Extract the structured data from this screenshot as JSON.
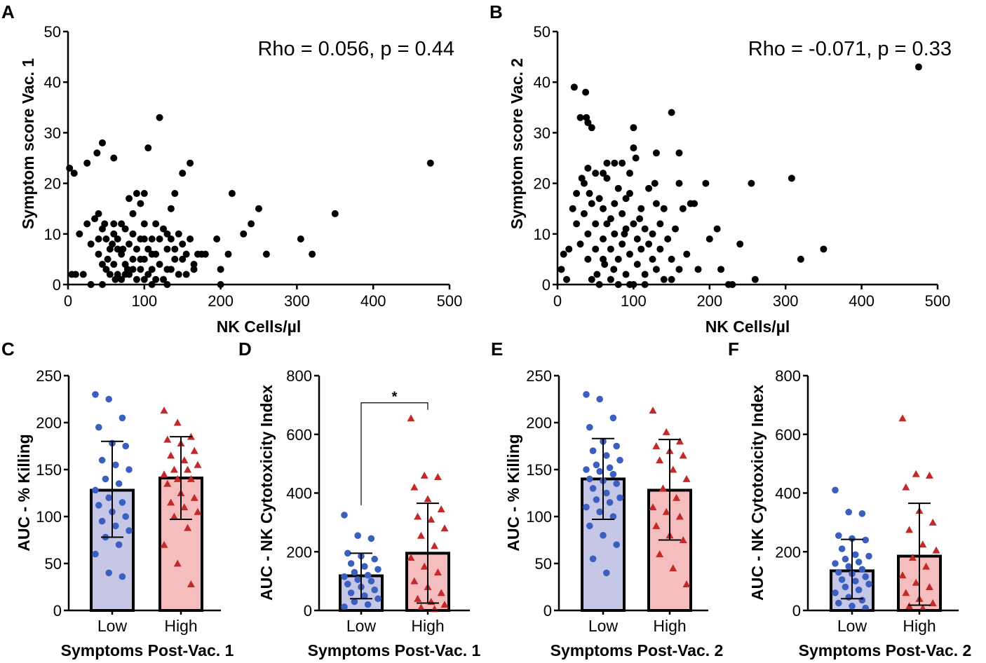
{
  "colors": {
    "blue_fill": "#c6c7e6",
    "blue_marker": "#3a5fbf",
    "red_fill": "#f5bdbd",
    "red_marker": "#c22a2a",
    "axis": "#000000"
  },
  "chart_data": [
    {
      "id": "scatterA",
      "panel": "A",
      "type": "scatter",
      "xlabel": "NK Cells/µl",
      "ylabel": "Symptom score Vac. 1",
      "annotation": "Rho = 0.056, p = 0.44",
      "xlim": [
        0,
        500
      ],
      "ylim": [
        0,
        50
      ],
      "xticks": [
        "0",
        "100",
        "200",
        "300",
        "400",
        "500"
      ],
      "yticks": [
        "0",
        "10",
        "20",
        "30",
        "40",
        "50"
      ],
      "points": [
        [
          2,
          23
        ],
        [
          8,
          22
        ],
        [
          25,
          24
        ],
        [
          38,
          26
        ],
        [
          45,
          28
        ],
        [
          60,
          25
        ],
        [
          105,
          27
        ],
        [
          120,
          33
        ],
        [
          140,
          18
        ],
        [
          150,
          22
        ],
        [
          160,
          24
        ],
        [
          215,
          18
        ],
        [
          250,
          15
        ],
        [
          475,
          24
        ],
        [
          5,
          2
        ],
        [
          10,
          2
        ],
        [
          20,
          2
        ],
        [
          15,
          10
        ],
        [
          25,
          12
        ],
        [
          30,
          8
        ],
        [
          35,
          13
        ],
        [
          40,
          14
        ],
        [
          40,
          6
        ],
        [
          45,
          11
        ],
        [
          50,
          9
        ],
        [
          50,
          3
        ],
        [
          55,
          7
        ],
        [
          60,
          12
        ],
        [
          60,
          4
        ],
        [
          65,
          9
        ],
        [
          65,
          2
        ],
        [
          70,
          6
        ],
        [
          70,
          1
        ],
        [
          75,
          11
        ],
        [
          75,
          4
        ],
        [
          80,
          17
        ],
        [
          80,
          8
        ],
        [
          80,
          2
        ],
        [
          85,
          14
        ],
        [
          85,
          5
        ],
        [
          90,
          18
        ],
        [
          90,
          7
        ],
        [
          95,
          16
        ],
        [
          95,
          3
        ],
        [
          100,
          9
        ],
        [
          100,
          18
        ],
        [
          100,
          5
        ],
        [
          100,
          1
        ],
        [
          105,
          7
        ],
        [
          110,
          9
        ],
        [
          110,
          3
        ],
        [
          115,
          12
        ],
        [
          115,
          6
        ],
        [
          120,
          9
        ],
        [
          120,
          4
        ],
        [
          125,
          11
        ],
        [
          125,
          1
        ],
        [
          130,
          7
        ],
        [
          130,
          3
        ],
        [
          135,
          15
        ],
        [
          135,
          9
        ],
        [
          140,
          5
        ],
        [
          145,
          10
        ],
        [
          145,
          2
        ],
        [
          150,
          8
        ],
        [
          155,
          6
        ],
        [
          160,
          9
        ],
        [
          165,
          4
        ],
        [
          170,
          6
        ],
        [
          175,
          6
        ],
        [
          180,
          6
        ],
        [
          195,
          9
        ],
        [
          200,
          3
        ],
        [
          210,
          6
        ],
        [
          230,
          10
        ],
        [
          240,
          12
        ],
        [
          320,
          6
        ],
        [
          305,
          9
        ],
        [
          350,
          14
        ],
        [
          260,
          6
        ],
        [
          40,
          9
        ],
        [
          45,
          4
        ],
        [
          55,
          2
        ],
        [
          60,
          10
        ],
        [
          65,
          7
        ],
        [
          70,
          12
        ],
        [
          75,
          2
        ],
        [
          85,
          10
        ],
        [
          90,
          1
        ],
        [
          95,
          9
        ],
        [
          105,
          2
        ],
        [
          110,
          6
        ],
        [
          115,
          1
        ],
        [
          130,
          10
        ],
        [
          135,
          3
        ],
        [
          150,
          5
        ],
        [
          155,
          2
        ],
        [
          165,
          3
        ],
        [
          200,
          0
        ],
        [
          30,
          0
        ],
        [
          45,
          0
        ],
        [
          110,
          0
        ],
        [
          130,
          0
        ],
        [
          140,
          7
        ],
        [
          100,
          12
        ],
        [
          95,
          5
        ],
        [
          85,
          3
        ],
        [
          72,
          7
        ],
        [
          62,
          1
        ],
        [
          52,
          5
        ],
        [
          48,
          12
        ],
        [
          58,
          8
        ],
        [
          78,
          3
        ]
      ]
    },
    {
      "id": "scatterB",
      "panel": "B",
      "type": "scatter",
      "xlabel": "NK Cells/µl",
      "ylabel": "Symptom score Vac. 2",
      "annotation": "Rho = -0.071, p = 0.33",
      "xlim": [
        0,
        500
      ],
      "ylim": [
        0,
        50
      ],
      "xticks": [
        "0",
        "100",
        "200",
        "300",
        "400",
        "500"
      ],
      "yticks": [
        "0",
        "10",
        "20",
        "30",
        "40",
        "50"
      ],
      "points": [
        [
          22,
          39
        ],
        [
          37,
          38
        ],
        [
          30,
          33
        ],
        [
          38,
          33
        ],
        [
          40,
          32
        ],
        [
          45,
          31
        ],
        [
          100,
          31
        ],
        [
          150,
          34
        ],
        [
          475,
          43
        ],
        [
          40,
          23
        ],
        [
          50,
          22
        ],
        [
          60,
          22
        ],
        [
          65,
          24
        ],
        [
          75,
          24
        ],
        [
          85,
          24
        ],
        [
          95,
          22
        ],
        [
          100,
          27
        ],
        [
          103,
          25
        ],
        [
          130,
          26
        ],
        [
          160,
          26
        ],
        [
          195,
          20
        ],
        [
          255,
          20
        ],
        [
          308,
          21
        ],
        [
          5,
          3
        ],
        [
          8,
          6
        ],
        [
          12,
          1
        ],
        [
          15,
          7
        ],
        [
          20,
          15
        ],
        [
          25,
          12
        ],
        [
          25,
          18
        ],
        [
          30,
          8
        ],
        [
          32,
          21
        ],
        [
          35,
          20
        ],
        [
          35,
          14
        ],
        [
          40,
          10
        ],
        [
          40,
          5
        ],
        [
          45,
          16
        ],
        [
          45,
          1
        ],
        [
          50,
          12
        ],
        [
          50,
          7
        ],
        [
          55,
          17
        ],
        [
          55,
          0
        ],
        [
          60,
          15
        ],
        [
          60,
          9
        ],
        [
          62,
          4
        ],
        [
          65,
          12
        ],
        [
          65,
          21
        ],
        [
          70,
          7
        ],
        [
          70,
          1
        ],
        [
          75,
          16
        ],
        [
          75,
          10
        ],
        [
          80,
          19
        ],
        [
          80,
          5
        ],
        [
          80,
          0
        ],
        [
          85,
          14
        ],
        [
          85,
          8
        ],
        [
          90,
          11
        ],
        [
          90,
          2
        ],
        [
          95,
          18
        ],
        [
          95,
          6
        ],
        [
          100,
          12
        ],
        [
          100,
          0
        ],
        [
          105,
          9
        ],
        [
          105,
          4
        ],
        [
          110,
          15
        ],
        [
          110,
          7
        ],
        [
          115,
          11
        ],
        [
          115,
          2
        ],
        [
          120,
          19
        ],
        [
          120,
          8
        ],
        [
          125,
          10
        ],
        [
          125,
          5
        ],
        [
          130,
          16
        ],
        [
          130,
          3
        ],
        [
          135,
          12
        ],
        [
          135,
          7
        ],
        [
          140,
          15
        ],
        [
          140,
          1
        ],
        [
          145,
          9
        ],
        [
          150,
          5
        ],
        [
          155,
          11
        ],
        [
          160,
          20
        ],
        [
          160,
          3
        ],
        [
          165,
          15
        ],
        [
          170,
          6
        ],
        [
          175,
          16
        ],
        [
          180,
          16
        ],
        [
          185,
          3
        ],
        [
          200,
          9
        ],
        [
          210,
          11
        ],
        [
          215,
          3
        ],
        [
          225,
          0
        ],
        [
          230,
          0
        ],
        [
          240,
          8
        ],
        [
          260,
          1
        ],
        [
          320,
          5
        ],
        [
          350,
          7
        ],
        [
          90,
          17
        ],
        [
          70,
          13
        ],
        [
          95,
          0
        ],
        [
          115,
          0
        ],
        [
          150,
          1
        ],
        [
          60,
          5
        ],
        [
          42,
          18
        ],
        [
          52,
          2
        ],
        [
          74,
          3
        ],
        [
          88,
          10
        ],
        [
          108,
          13
        ],
        [
          128,
          20
        ]
      ]
    },
    {
      "id": "barC",
      "panel": "C",
      "type": "bar",
      "ylabel": "AUC - % Killing",
      "xlabel": "Symptoms Post-Vac. 1",
      "categories": [
        "Low",
        "High"
      ],
      "ylim": [
        0,
        250
      ],
      "yticks": [
        "0",
        "50",
        "100",
        "150",
        "200",
        "250"
      ],
      "bars": [
        {
          "mean": 128,
          "err_low": 78,
          "err_high": 180,
          "points": [
            230,
            225,
            205,
            195,
            178,
            175,
            160,
            155,
            150,
            140,
            135,
            128,
            120,
            115,
            112,
            105,
            100,
            95,
            90,
            85,
            78,
            70,
            60,
            40,
            36
          ]
        },
        {
          "mean": 141,
          "err_low": 97,
          "err_high": 185,
          "points": [
            213,
            200,
            185,
            182,
            178,
            170,
            165,
            160,
            155,
            150,
            150,
            145,
            140,
            140,
            135,
            125,
            120,
            115,
            110,
            105,
            100,
            88,
            70,
            50,
            28
          ]
        }
      ]
    },
    {
      "id": "barD",
      "panel": "D",
      "type": "bar",
      "ylabel": "AUC - NK Cytotoxicity Index",
      "xlabel": "Symptoms Post-Vac. 1",
      "categories": [
        "Low",
        "High"
      ],
      "ylim": [
        0,
        800
      ],
      "yticks": [
        "0",
        "200",
        "400",
        "600",
        "800"
      ],
      "significance": "*",
      "bars": [
        {
          "mean": 118,
          "err_low": 40,
          "err_high": 195,
          "points": [
            325,
            255,
            245,
            195,
            185,
            175,
            160,
            150,
            140,
            130,
            120,
            115,
            105,
            100,
            90,
            80,
            70,
            60,
            50,
            40,
            30,
            20,
            12
          ]
        },
        {
          "mean": 195,
          "err_low": 25,
          "err_high": 365,
          "points": [
            655,
            460,
            455,
            420,
            380,
            345,
            320,
            310,
            280,
            255,
            220,
            180,
            150,
            130,
            100,
            80,
            60,
            40,
            30,
            20,
            10,
            5
          ]
        }
      ]
    },
    {
      "id": "barE",
      "panel": "E",
      "type": "bar",
      "ylabel": "AUC - % Killing",
      "xlabel": "Symptoms Post-Vac. 2",
      "categories": [
        "Low",
        "High"
      ],
      "ylim": [
        0,
        250
      ],
      "yticks": [
        "0",
        "50",
        "100",
        "150",
        "200",
        "250"
      ],
      "bars": [
        {
          "mean": 140,
          "err_low": 97,
          "err_high": 183,
          "points": [
            230,
            225,
            205,
            195,
            180,
            175,
            170,
            165,
            160,
            155,
            152,
            150,
            148,
            145,
            140,
            138,
            135,
            130,
            125,
            120,
            118,
            115,
            110,
            105,
            100,
            90,
            80,
            70,
            55,
            40
          ]
        },
        {
          "mean": 128,
          "err_low": 75,
          "err_high": 182,
          "points": [
            213,
            190,
            180,
            175,
            170,
            165,
            160,
            150,
            140,
            130,
            120,
            110,
            105,
            100,
            90,
            80,
            75,
            60,
            45,
            28
          ]
        }
      ]
    },
    {
      "id": "barF",
      "panel": "F",
      "type": "bar",
      "ylabel": "AUC - NK Cytotoxicity Index",
      "xlabel": "Symptoms Post-Vac. 2",
      "categories": [
        "Low",
        "High"
      ],
      "ylim": [
        0,
        800
      ],
      "yticks": [
        "0",
        "200",
        "400",
        "600",
        "800"
      ],
      "bars": [
        {
          "mean": 135,
          "err_low": 40,
          "err_high": 242,
          "points": [
            410,
            335,
            330,
            255,
            245,
            240,
            210,
            190,
            185,
            175,
            165,
            160,
            150,
            140,
            130,
            125,
            115,
            105,
            100,
            90,
            80,
            70,
            60,
            45,
            35,
            25,
            15,
            8
          ]
        },
        {
          "mean": 185,
          "err_low": 18,
          "err_high": 365,
          "points": [
            655,
            465,
            460,
            420,
            340,
            300,
            275,
            225,
            205,
            180,
            150,
            120,
            95,
            80,
            60,
            40,
            25,
            15,
            8
          ]
        }
      ]
    }
  ]
}
